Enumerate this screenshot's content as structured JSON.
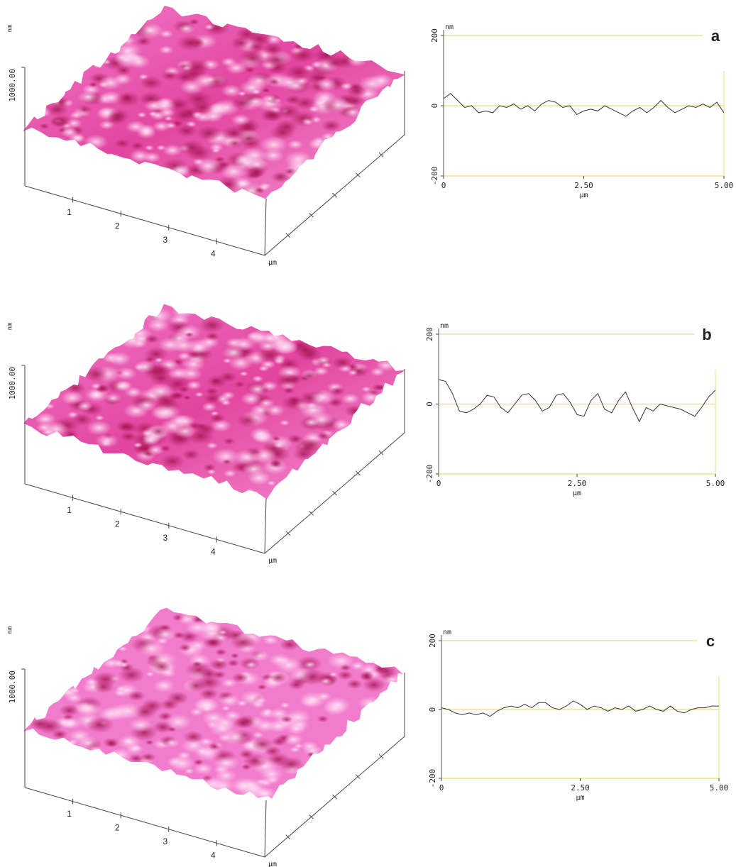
{
  "chart_data": [
    {
      "type": "surface",
      "zlabel": "nm",
      "zlim": [
        0,
        1000
      ],
      "zticks": [
        {
          "value": 1000,
          "label": "1000.00"
        }
      ],
      "xlim": [
        0,
        5
      ],
      "xticks": [
        1,
        2,
        3,
        4
      ],
      "xlabel": "µm",
      "color": "#e8439f"
    },
    {
      "type": "line",
      "label": "a",
      "ylabel": "nm",
      "xlabel": "µm",
      "color": "#333333",
      "frame_color": "#e6df78",
      "xlim": [
        0,
        5
      ],
      "ylim": [
        -200,
        200
      ],
      "yticks": [
        -200,
        0,
        200
      ],
      "xticks": [
        0,
        {
          "value": 2.5,
          "label": "2.50"
        },
        {
          "value": 5,
          "label": "5.00"
        }
      ],
      "x": [
        0,
        0.125,
        0.25,
        0.375,
        0.5,
        0.625,
        0.75,
        0.875,
        1,
        1.125,
        1.25,
        1.375,
        1.5,
        1.625,
        1.75,
        1.875,
        2,
        2.125,
        2.25,
        2.375,
        2.5,
        2.625,
        2.75,
        2.875,
        3,
        3.125,
        3.25,
        3.375,
        3.5,
        3.625,
        3.75,
        3.875,
        4,
        4.125,
        4.25,
        4.375,
        4.5,
        4.625,
        4.75,
        4.875,
        5
      ],
      "values": [
        20,
        35,
        15,
        -5,
        0,
        -20,
        -15,
        -20,
        0,
        -5,
        5,
        -10,
        0,
        -15,
        5,
        15,
        10,
        -5,
        0,
        -25,
        -15,
        -10,
        -15,
        0,
        -10,
        -20,
        -30,
        -15,
        -5,
        -20,
        -5,
        15,
        -5,
        -20,
        -10,
        0,
        -5,
        5,
        -5,
        10,
        -20
      ]
    },
    {
      "type": "surface",
      "zlabel": "nm",
      "zlim": [
        0,
        1000
      ],
      "zticks": [
        {
          "value": 1000,
          "label": "1000.00"
        }
      ],
      "xlim": [
        0,
        5
      ],
      "xticks": [
        1,
        2,
        3,
        4
      ],
      "xlabel": "µm",
      "color": "#e8439f"
    },
    {
      "type": "line",
      "label": "b",
      "ylabel": "nm",
      "xlabel": "µm",
      "color": "#333333",
      "frame_color": "#e6df78",
      "xlim": [
        0,
        5
      ],
      "ylim": [
        -200,
        200
      ],
      "yticks": [
        -200,
        0,
        200
      ],
      "xticks": [
        0,
        {
          "value": 2.5,
          "label": "2.50"
        },
        {
          "value": 5,
          "label": "5.00"
        }
      ],
      "x": [
        0,
        0.125,
        0.25,
        0.375,
        0.5,
        0.625,
        0.75,
        0.875,
        1,
        1.125,
        1.25,
        1.375,
        1.5,
        1.625,
        1.75,
        1.875,
        2,
        2.125,
        2.25,
        2.375,
        2.5,
        2.625,
        2.75,
        2.875,
        3,
        3.125,
        3.25,
        3.375,
        3.5,
        3.625,
        3.75,
        3.875,
        4,
        4.125,
        4.25,
        4.375,
        4.5,
        4.625,
        4.75,
        4.875,
        5
      ],
      "values": [
        70,
        65,
        30,
        -20,
        -25,
        -15,
        0,
        25,
        20,
        -10,
        -25,
        0,
        25,
        30,
        10,
        -20,
        -10,
        25,
        30,
        5,
        -30,
        -35,
        10,
        30,
        -15,
        -25,
        10,
        35,
        -10,
        -50,
        -10,
        -20,
        0,
        -5,
        -10,
        -15,
        -25,
        -35,
        -10,
        20,
        40
      ]
    },
    {
      "type": "surface",
      "zlabel": "nm",
      "zlim": [
        0,
        1000
      ],
      "zticks": [
        {
          "value": 1000,
          "label": "1000.00"
        }
      ],
      "xlim": [
        0,
        5
      ],
      "xticks": [
        1,
        2,
        3,
        4
      ],
      "xlabel": "µm",
      "color": "#f06cc0"
    },
    {
      "type": "line",
      "label": "c",
      "ylabel": "nm",
      "xlabel": "µm",
      "color": "#333333",
      "frame_color": "#e6df78",
      "xlim": [
        0,
        5
      ],
      "ylim": [
        -200,
        200
      ],
      "yticks": [
        -200,
        0,
        200
      ],
      "xticks": [
        0,
        {
          "value": 2.5,
          "label": "2.50"
        },
        {
          "value": 5,
          "label": "5.00"
        }
      ],
      "x": [
        0,
        0.125,
        0.25,
        0.375,
        0.5,
        0.625,
        0.75,
        0.875,
        1,
        1.125,
        1.25,
        1.375,
        1.5,
        1.625,
        1.75,
        1.875,
        2,
        2.125,
        2.25,
        2.375,
        2.5,
        2.625,
        2.75,
        2.875,
        3,
        3.125,
        3.25,
        3.375,
        3.5,
        3.625,
        3.75,
        3.875,
        4,
        4.125,
        4.25,
        4.375,
        4.5,
        4.625,
        4.75,
        4.875,
        5
      ],
      "values": [
        5,
        0,
        -10,
        -15,
        -10,
        -15,
        -10,
        -20,
        -5,
        5,
        10,
        5,
        15,
        5,
        20,
        20,
        5,
        0,
        10,
        25,
        15,
        0,
        10,
        5,
        -5,
        5,
        0,
        10,
        -5,
        0,
        10,
        0,
        -5,
        10,
        -5,
        -10,
        0,
        5,
        5,
        10,
        10
      ]
    }
  ]
}
